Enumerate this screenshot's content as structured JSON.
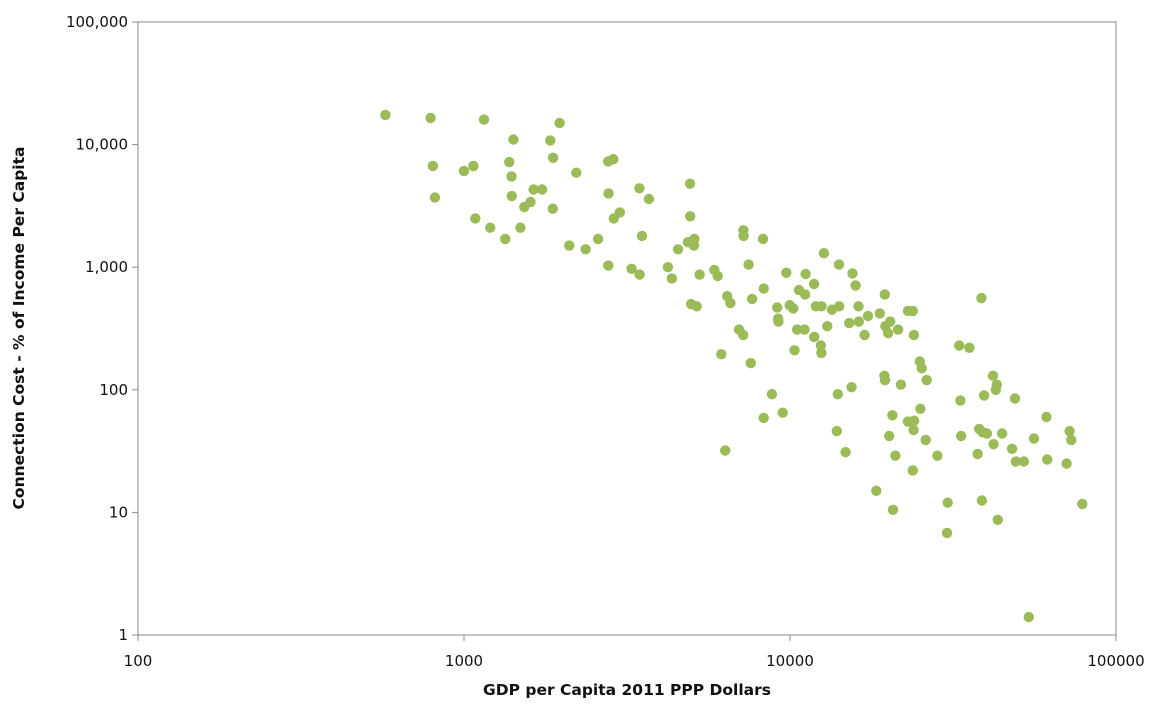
{
  "chart_data": {
    "type": "scatter",
    "title": "",
    "xlabel": "GDP per Capita 2011 PPP Dollars",
    "ylabel": "Connection Cost - % of Income Per Capita",
    "x_scale": "log",
    "y_scale": "log",
    "xlim": [
      100,
      100000
    ],
    "ylim": [
      1,
      100000
    ],
    "x_ticks": [
      {
        "value": 100,
        "label": "100"
      },
      {
        "value": 1000,
        "label": "1000"
      },
      {
        "value": 10000,
        "label": "10000"
      },
      {
        "value": 100000,
        "label": "100000"
      }
    ],
    "y_ticks": [
      {
        "value": 1,
        "label": "1"
      },
      {
        "value": 10,
        "label": "10"
      },
      {
        "value": 100,
        "label": "100"
      },
      {
        "value": 1000,
        "label": "1,000"
      },
      {
        "value": 10000,
        "label": "10,000"
      },
      {
        "value": 100000,
        "label": "100,000"
      }
    ],
    "grid": false,
    "legend": false,
    "marker_color": "#9bbb59",
    "points": [
      [
        574,
        17470
      ],
      [
        790,
        16500
      ],
      [
        1152,
        16000
      ],
      [
        1965,
        15000
      ],
      [
        1418,
        11000
      ],
      [
        1839,
        10800
      ],
      [
        803,
        6700
      ],
      [
        1069,
        6700
      ],
      [
        1000,
        6100
      ],
      [
        1376,
        7200
      ],
      [
        1876,
        7800
      ],
      [
        2871,
        7600
      ],
      [
        2770,
        7300
      ],
      [
        1399,
        5500
      ],
      [
        2211,
        5900
      ],
      [
        4933,
        4800
      ],
      [
        814,
        3700
      ],
      [
        1635,
        4300
      ],
      [
        1736,
        4300
      ],
      [
        1402,
        3800
      ],
      [
        1531,
        3100
      ],
      [
        1599,
        3400
      ],
      [
        1872,
        3000
      ],
      [
        2774,
        4000
      ],
      [
        3452,
        4400
      ],
      [
        3692,
        3600
      ],
      [
        1083,
        2500
      ],
      [
        1203,
        2100
      ],
      [
        1338,
        1700
      ],
      [
        1489,
        2100
      ],
      [
        2880,
        2500
      ],
      [
        3006,
        2800
      ],
      [
        4943,
        2600
      ],
      [
        2104,
        1500
      ],
      [
        2579,
        1700
      ],
      [
        2360,
        1400
      ],
      [
        3515,
        1800
      ],
      [
        4533,
        1400
      ],
      [
        4863,
        1600
      ],
      [
        5077,
        1500
      ],
      [
        5089,
        1700
      ],
      [
        7194,
        2000
      ],
      [
        7207,
        1800
      ],
      [
        8265,
        1700
      ],
      [
        12708,
        1300
      ],
      [
        2771,
        1030
      ],
      [
        3266,
        970
      ],
      [
        4220,
        1000
      ],
      [
        3457,
        870
      ],
      [
        4341,
        810
      ],
      [
        5280,
        870
      ],
      [
        5857,
        950
      ],
      [
        6003,
        850
      ],
      [
        7466,
        1050
      ],
      [
        9739,
        900
      ],
      [
        11162,
        880
      ],
      [
        14134,
        1050
      ],
      [
        15555,
        890
      ],
      [
        4974,
        500
      ],
      [
        5174,
        480
      ],
      [
        6418,
        580
      ],
      [
        6562,
        510
      ],
      [
        7650,
        550
      ],
      [
        8303,
        670
      ],
      [
        9137,
        470
      ],
      [
        9978,
        490
      ],
      [
        10238,
        460
      ],
      [
        10656,
        650
      ],
      [
        11126,
        600
      ],
      [
        11858,
        730
      ],
      [
        12005,
        480
      ],
      [
        12503,
        480
      ],
      [
        13455,
        450
      ],
      [
        14157,
        480
      ],
      [
        15896,
        710
      ],
      [
        16223,
        480
      ],
      [
        17354,
        400
      ],
      [
        18854,
        420
      ],
      [
        19532,
        600
      ],
      [
        20296,
        360
      ],
      [
        23008,
        440
      ],
      [
        23805,
        440
      ],
      [
        6974,
        310
      ],
      [
        7184,
        280
      ],
      [
        9196,
        380
      ],
      [
        9212,
        360
      ],
      [
        10515,
        310
      ],
      [
        11081,
        310
      ],
      [
        11868,
        270
      ],
      [
        12442,
        230
      ],
      [
        12483,
        200
      ],
      [
        13012,
        330
      ],
      [
        15186,
        350
      ],
      [
        16262,
        360
      ],
      [
        16936,
        280
      ],
      [
        19597,
        330
      ],
      [
        19992,
        290
      ],
      [
        21451,
        310
      ],
      [
        23998,
        280
      ],
      [
        6154,
        195
      ],
      [
        7580,
        165
      ],
      [
        10322,
        210
      ],
      [
        14013,
        92
      ],
      [
        15447,
        105
      ],
      [
        19478,
        130
      ],
      [
        19567,
        120
      ],
      [
        21888,
        110
      ],
      [
        25016,
        170
      ],
      [
        25343,
        150
      ],
      [
        26267,
        120
      ],
      [
        33029,
        230
      ],
      [
        35500,
        220
      ],
      [
        38650,
        560
      ],
      [
        8797,
        92
      ],
      [
        9496,
        65
      ],
      [
        13913,
        46
      ],
      [
        8307,
        59
      ],
      [
        14814,
        31
      ],
      [
        20611,
        62
      ],
      [
        23001,
        55
      ],
      [
        24028,
        56
      ],
      [
        25113,
        70
      ],
      [
        20157,
        42
      ],
      [
        23936,
        47
      ],
      [
        26074,
        39
      ],
      [
        33328,
        82
      ],
      [
        33476,
        42
      ],
      [
        38050,
        48
      ],
      [
        39006,
        45
      ],
      [
        40190,
        44
      ],
      [
        39400,
        90
      ],
      [
        41946,
        130
      ],
      [
        43077,
        110
      ],
      [
        42781,
        100
      ],
      [
        44727,
        44
      ],
      [
        48988,
        85
      ],
      [
        61214,
        60
      ],
      [
        72043,
        46
      ],
      [
        72913,
        39
      ],
      [
        6327,
        32
      ],
      [
        21059,
        29
      ],
      [
        23809,
        22
      ],
      [
        28314,
        29
      ],
      [
        37620,
        30
      ],
      [
        42128,
        36
      ],
      [
        47990,
        33
      ],
      [
        49271,
        26
      ],
      [
        52148,
        26
      ],
      [
        56020,
        40
      ],
      [
        61508,
        27
      ],
      [
        70556,
        25
      ],
      [
        18402,
        15
      ],
      [
        20698,
        10.5
      ],
      [
        30453,
        12
      ],
      [
        38788,
        12.5
      ],
      [
        43400,
        8.7
      ],
      [
        78835,
        11.7
      ],
      [
        30313,
        6.8
      ],
      [
        54031,
        1.4
      ]
    ]
  }
}
